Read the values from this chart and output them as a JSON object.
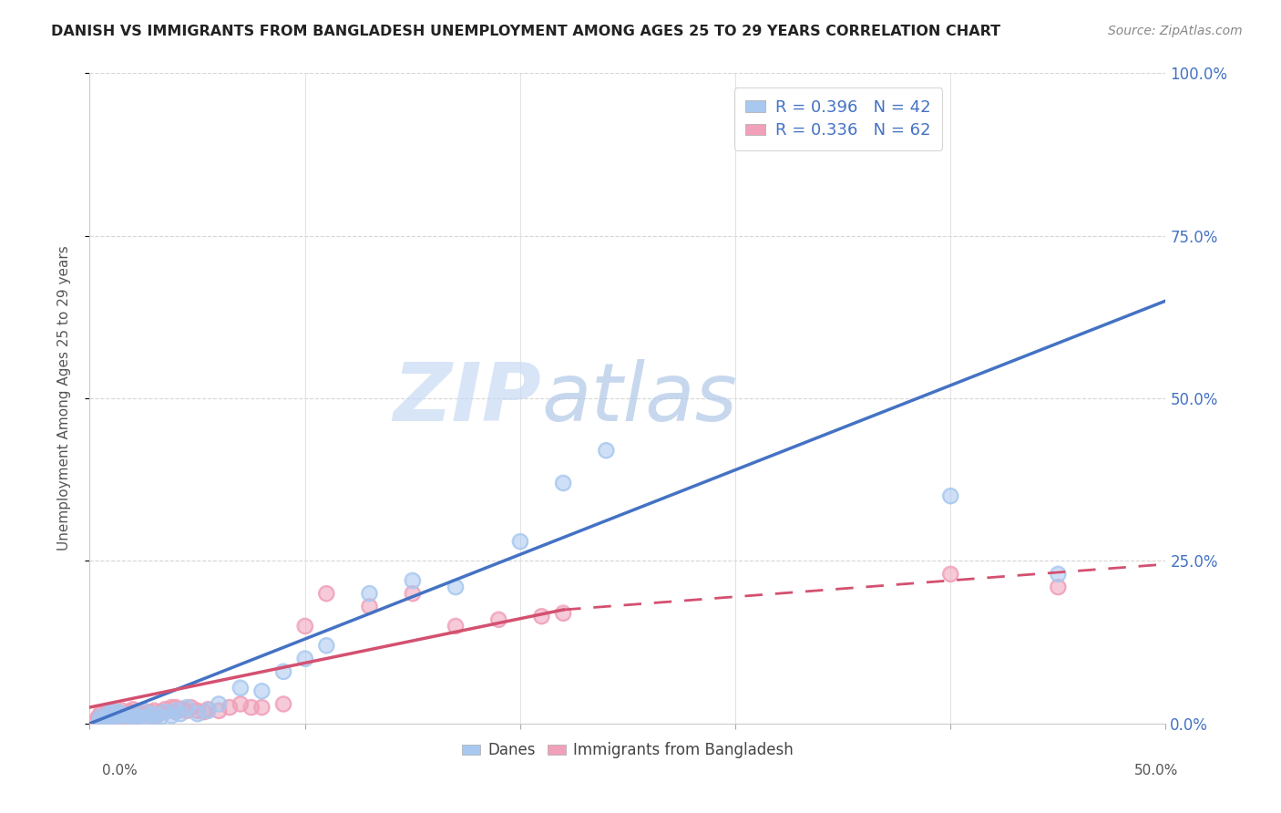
{
  "title": "DANISH VS IMMIGRANTS FROM BANGLADESH UNEMPLOYMENT AMONG AGES 25 TO 29 YEARS CORRELATION CHART",
  "source": "Source: ZipAtlas.com",
  "ylabel": "Unemployment Among Ages 25 to 29 years",
  "xlim": [
    0,
    0.5
  ],
  "ylim": [
    0,
    1.0
  ],
  "danes_color": "#a8c8f0",
  "bangladesh_color": "#f0a0b8",
  "danes_line_color": "#4472c4",
  "bangladesh_line_color": "#d45070",
  "danes_R": 0.396,
  "danes_N": 42,
  "bangladesh_R": 0.336,
  "bangladesh_N": 62,
  "danes_x": [
    0.005,
    0.005,
    0.007,
    0.008,
    0.009,
    0.01,
    0.01,
    0.012,
    0.013,
    0.015,
    0.015,
    0.018,
    0.02,
    0.02,
    0.022,
    0.025,
    0.025,
    0.028,
    0.03,
    0.03,
    0.033,
    0.035,
    0.038,
    0.04,
    0.042,
    0.045,
    0.05,
    0.055,
    0.06,
    0.07,
    0.08,
    0.09,
    0.1,
    0.11,
    0.13,
    0.15,
    0.17,
    0.2,
    0.22,
    0.24,
    0.4,
    0.45
  ],
  "danes_y": [
    0.005,
    0.01,
    0.008,
    0.012,
    0.015,
    0.005,
    0.02,
    0.01,
    0.018,
    0.005,
    0.015,
    0.012,
    0.005,
    0.015,
    0.01,
    0.008,
    0.02,
    0.012,
    0.005,
    0.015,
    0.01,
    0.018,
    0.012,
    0.02,
    0.015,
    0.025,
    0.015,
    0.02,
    0.03,
    0.055,
    0.05,
    0.08,
    0.1,
    0.12,
    0.2,
    0.22,
    0.21,
    0.28,
    0.37,
    0.42,
    0.35,
    0.23
  ],
  "bangladesh_x": [
    0.003,
    0.004,
    0.005,
    0.005,
    0.006,
    0.007,
    0.008,
    0.008,
    0.009,
    0.01,
    0.01,
    0.01,
    0.012,
    0.012,
    0.013,
    0.014,
    0.015,
    0.015,
    0.016,
    0.018,
    0.018,
    0.019,
    0.02,
    0.02,
    0.02,
    0.022,
    0.022,
    0.023,
    0.025,
    0.025,
    0.027,
    0.028,
    0.03,
    0.03,
    0.032,
    0.033,
    0.035,
    0.038,
    0.04,
    0.04,
    0.043,
    0.045,
    0.047,
    0.05,
    0.053,
    0.055,
    0.06,
    0.065,
    0.07,
    0.075,
    0.08,
    0.09,
    0.1,
    0.11,
    0.13,
    0.15,
    0.17,
    0.19,
    0.21,
    0.22,
    0.4,
    0.45
  ],
  "bangladesh_y": [
    0.005,
    0.01,
    0.008,
    0.015,
    0.01,
    0.008,
    0.012,
    0.018,
    0.005,
    0.01,
    0.015,
    0.02,
    0.01,
    0.018,
    0.008,
    0.015,
    0.012,
    0.02,
    0.01,
    0.008,
    0.015,
    0.018,
    0.01,
    0.015,
    0.022,
    0.01,
    0.018,
    0.012,
    0.015,
    0.02,
    0.012,
    0.018,
    0.01,
    0.02,
    0.015,
    0.018,
    0.022,
    0.025,
    0.018,
    0.025,
    0.022,
    0.02,
    0.025,
    0.02,
    0.018,
    0.022,
    0.02,
    0.025,
    0.03,
    0.025,
    0.025,
    0.03,
    0.15,
    0.2,
    0.18,
    0.2,
    0.15,
    0.16,
    0.165,
    0.17,
    0.23,
    0.21
  ],
  "danes_line_x0": 0.0,
  "danes_line_y0": 0.0,
  "danes_line_x1": 0.5,
  "danes_line_y1": 0.65,
  "bangladesh_line_x0": 0.0,
  "bangladesh_line_y0": 0.025,
  "bangladesh_line_xsolid": 0.22,
  "bangladesh_line_ysolid": 0.175,
  "bangladesh_line_x1": 0.5,
  "bangladesh_line_y1": 0.245,
  "watermark_zip_color": "#ccddf5",
  "watermark_atlas_color": "#b8c8e8",
  "background_color": "#ffffff",
  "grid_color": "#cccccc",
  "legend_label_color": "#4472c4",
  "right_axis_color": "#4472c4"
}
